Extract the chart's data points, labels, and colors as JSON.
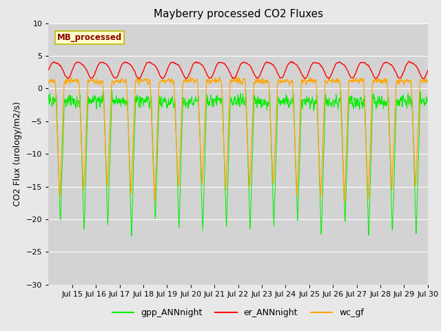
{
  "title": "Mayberry processed CO2 Fluxes",
  "ylabel": "CO2 Flux (urology/m2/s)",
  "ylim": [
    -30,
    10
  ],
  "yticks": [
    -30,
    -25,
    -20,
    -15,
    -10,
    -5,
    0,
    5,
    10
  ],
  "fig_bg": "#e8e8e8",
  "plot_bg": "#d3d3d3",
  "title_fontsize": 11,
  "axis_fontsize": 9,
  "tick_fontsize": 8,
  "legend_label": "MB_processed",
  "legend_text_color": "#8b0000",
  "legend_bg": "#ffffcc",
  "legend_border": "#bbbb00",
  "line_green": "#00ee00",
  "line_red": "#ff0000",
  "line_orange": "#ffa500",
  "n_days": 16,
  "n_pts_per_day": 96,
  "tick_labels": [
    "Jul 15",
    "Jul 16",
    "Jul 17",
    "Jul 18",
    "Jul 19",
    "Jul 20",
    "Jul 21",
    "Jul 22",
    "Jul 23",
    "Jul 24",
    "Jul 25",
    "Jul 26",
    "Jul 27",
    "Jul 28",
    "Jul 29",
    "Jul 30"
  ]
}
